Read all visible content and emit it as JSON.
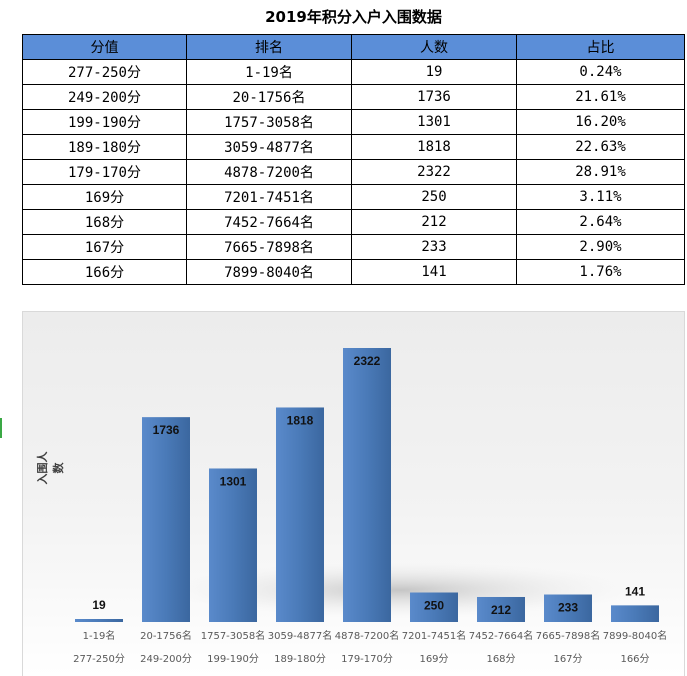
{
  "title": "2019年积分入户入围数据",
  "table": {
    "headers": [
      "分值",
      "排名",
      "人数",
      "占比"
    ],
    "rows": [
      [
        "277-250分",
        "1-19名",
        "19",
        "0.24%"
      ],
      [
        "249-200分",
        "20-1756名",
        "1736",
        "21.61%"
      ],
      [
        "199-190分",
        "1757-3058名",
        "1301",
        "16.20%"
      ],
      [
        "189-180分",
        "3059-4877名",
        "1818",
        "22.63%"
      ],
      [
        "179-170分",
        "4878-7200名",
        "2322",
        "28.91%"
      ],
      [
        "169分",
        "7201-7451名",
        "250",
        "3.11%"
      ],
      [
        "168分",
        "7452-7664名",
        "212",
        "2.64%"
      ],
      [
        "167分",
        "7665-7898名",
        "233",
        "2.90%"
      ],
      [
        "166分",
        "7899-8040名",
        "141",
        "1.76%"
      ]
    ]
  },
  "chart_data": {
    "type": "bar",
    "ylabel": "入围人数",
    "xlabel": "",
    "categories": [
      [
        "1-19名",
        "277-250分"
      ],
      [
        "20-1756名",
        "249-200分"
      ],
      [
        "1757-3058名",
        "199-190分"
      ],
      [
        "3059-4877名",
        "189-180分"
      ],
      [
        "4878-7200名",
        "179-170分"
      ],
      [
        "7201-7451名",
        "169分"
      ],
      [
        "7452-7664名",
        "168分"
      ],
      [
        "7665-7898名",
        "167分"
      ],
      [
        "7899-8040名",
        "166分"
      ]
    ],
    "values": [
      19,
      1736,
      1301,
      1818,
      2322,
      250,
      212,
      233,
      141
    ],
    "ylim": [
      0,
      2322
    ],
    "grid": false,
    "legend": "none",
    "bar_color": "#4a7ab8"
  }
}
